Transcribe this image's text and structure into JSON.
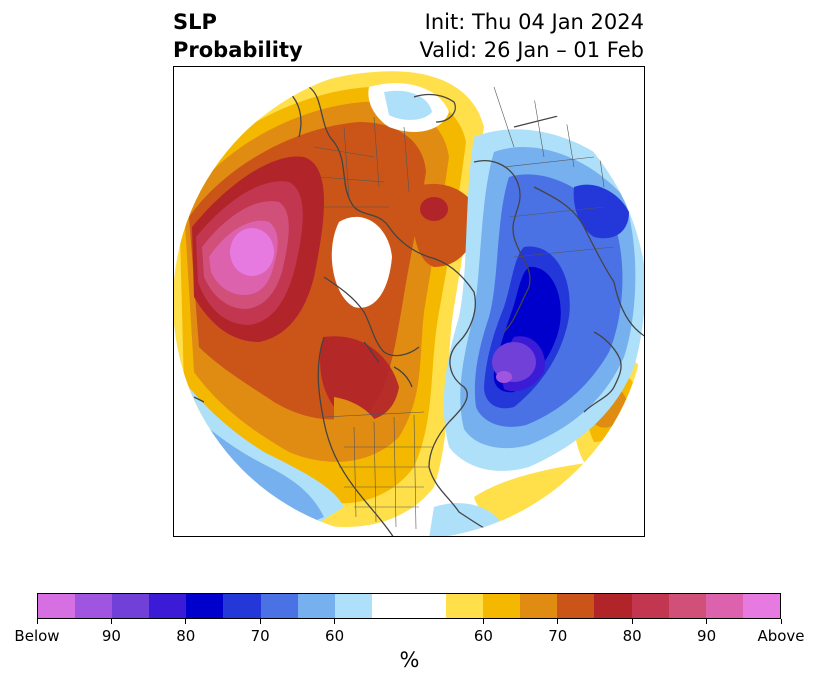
{
  "header": {
    "title_line1": "SLP",
    "title_line2": "Probability",
    "init_text": "Init: Thu 04 Jan 2024",
    "valid_text": "Valid: 26 Jan – 01 Feb"
  },
  "map": {
    "projection": "north-polar-stereographic",
    "region": "Northern Hemisphere",
    "coastline_color": "#444444",
    "features": [
      {
        "name": "strong-above-anomaly-north-pacific",
        "category": "above",
        "peak": "Above"
      },
      {
        "name": "above-anomaly-eurasia",
        "category": "above",
        "peak": 80
      },
      {
        "name": "above-anomaly-canada",
        "category": "above",
        "peak": 80
      },
      {
        "name": "strong-below-anomaly-north-atlantic",
        "category": "below",
        "peak": 90
      },
      {
        "name": "below-anomaly-western-europe",
        "category": "below",
        "peak": 70
      },
      {
        "name": "above-anomaly-iberia-africa",
        "category": "above",
        "peak": 70
      }
    ]
  },
  "colorbar": {
    "colors": [
      "#d670e2",
      "#a055e0",
      "#7140d8",
      "#3c1bd6",
      "#0000cd",
      "#2437d9",
      "#4a72e4",
      "#76b0ee",
      "#aee0fa",
      "#ffffff",
      "#ffffff",
      "#ffe04a",
      "#f5b800",
      "#e08c13",
      "#cb5518",
      "#b1242a",
      "#c23650",
      "#d0507a",
      "#dd62ad",
      "#e67ae0"
    ],
    "ticks": [
      {
        "label": "Below",
        "index": 0
      },
      {
        "label": "90",
        "index": 2
      },
      {
        "label": "80",
        "index": 4
      },
      {
        "label": "70",
        "index": 6
      },
      {
        "label": "60",
        "index": 8
      },
      {
        "label": "60",
        "index": 12
      },
      {
        "label": "70",
        "index": 14
      },
      {
        "label": "80",
        "index": 16
      },
      {
        "label": "90",
        "index": 18
      },
      {
        "label": "Above",
        "index": 20
      }
    ],
    "unit": "%"
  }
}
